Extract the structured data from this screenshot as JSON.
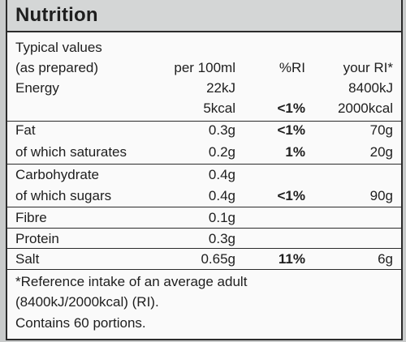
{
  "title": "Nutrition",
  "header": {
    "label_line1": "Typical values",
    "label_line2": "(as prepared)",
    "col_per100": "per 100ml",
    "col_ri": "%RI",
    "col_your_ri": "your RI*"
  },
  "rows": [
    {
      "name": "Energy",
      "per100": "22kJ",
      "ri": "",
      "your_ri": "8400kJ"
    },
    {
      "name": "",
      "per100": "5kcal",
      "ri": "<1%",
      "your_ri": "2000kcal"
    },
    {
      "name": "Fat",
      "per100": "0.3g",
      "ri": "<1%",
      "your_ri": "70g"
    },
    {
      "name": "of which saturates",
      "per100": "0.2g",
      "ri": "1%",
      "your_ri": "20g"
    },
    {
      "name": "Carbohydrate",
      "per100": "0.4g",
      "ri": "",
      "your_ri": ""
    },
    {
      "name": "of which sugars",
      "per100": "0.4g",
      "ri": "<1%",
      "your_ri": "90g"
    },
    {
      "name": "Fibre",
      "per100": "0.1g",
      "ri": "",
      "your_ri": ""
    },
    {
      "name": "Protein",
      "per100": "0.3g",
      "ri": "",
      "your_ri": ""
    },
    {
      "name": "Salt",
      "per100": "0.65g",
      "ri": "11%",
      "your_ri": "6g"
    }
  ],
  "footer": {
    "line1": "*Reference intake of an average adult",
    "line2": "(8400kJ/2000kcal) (RI).",
    "line3": "Contains 60 portions."
  }
}
